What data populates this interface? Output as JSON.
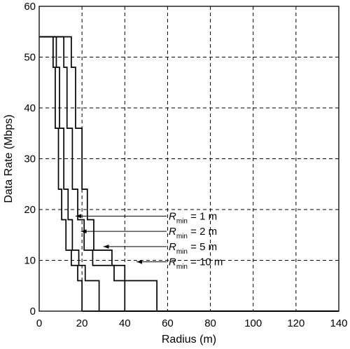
{
  "chart_data": {
    "type": "line",
    "title": "",
    "xlabel": "Radius (m)",
    "ylabel": "Data Rate (Mbps)",
    "xlim": [
      0,
      140
    ],
    "ylim": [
      0,
      60
    ],
    "xticks": [
      0,
      20,
      40,
      60,
      80,
      100,
      120,
      140
    ],
    "yticks": [
      0,
      10,
      20,
      30,
      40,
      50,
      60
    ],
    "grid": true,
    "grid_style": "dashed",
    "legend": "none",
    "series": [
      {
        "name": "Rmin = 1 m",
        "x": [
          0,
          6.5,
          6.5,
          7.5,
          7.5,
          9,
          9,
          10.5,
          10.5,
          12.5,
          12.5,
          15,
          15,
          18,
          18,
          20,
          20,
          28.5,
          28.5,
          140
        ],
        "y": [
          54,
          54,
          48,
          48,
          36,
          36,
          24,
          24,
          18,
          18,
          12,
          12,
          9,
          9,
          6,
          6,
          0,
          0,
          0,
          0
        ]
      },
      {
        "name": "Rmin = 2 m",
        "x": [
          0,
          8,
          8,
          9.5,
          9.5,
          11.5,
          11.5,
          13.5,
          13.5,
          15.5,
          15.5,
          18.5,
          18.5,
          21.5,
          21.5,
          24,
          24,
          28,
          28,
          32.5,
          32.5,
          140
        ],
        "y": [
          54,
          54,
          48,
          48,
          36,
          36,
          24,
          24,
          18,
          18,
          12,
          12,
          9,
          9,
          6,
          6,
          6,
          6,
          0,
          0,
          0,
          0
        ]
      },
      {
        "name": "Rmin = 5 m",
        "x": [
          0,
          11.5,
          11.5,
          13,
          13,
          15.5,
          15.5,
          18,
          18,
          21,
          21,
          25,
          25,
          30,
          30,
          35,
          35,
          40,
          40,
          43,
          43,
          140
        ],
        "y": [
          54,
          54,
          48,
          48,
          36,
          36,
          24,
          24,
          18,
          18,
          12,
          12,
          9,
          9,
          9,
          9,
          6,
          6,
          0,
          0,
          0,
          0
        ]
      },
      {
        "name": "Rmin = 10 m",
        "x": [
          0,
          15,
          15,
          17,
          17,
          20,
          20,
          22.5,
          22.5,
          25.5,
          25.5,
          30,
          30,
          34,
          34,
          40,
          40,
          46,
          46,
          55,
          55,
          140
        ],
        "y": [
          54,
          54,
          48,
          48,
          36,
          36,
          24,
          24,
          18,
          18,
          12,
          12,
          12,
          12,
          9,
          9,
          6,
          6,
          6,
          6,
          0,
          0
        ]
      }
    ],
    "annotations": [
      {
        "base": "R",
        "sub": "min",
        "rest": " = 1 m",
        "y": 18.7,
        "arrow_to_x": 17
      },
      {
        "base": "R",
        "sub": "min",
        "rest": " = 2 m",
        "y": 15.7,
        "arrow_to_x": 19.5
      },
      {
        "base": "R",
        "sub": "min",
        "rest": " = 5 m",
        "y": 12.7,
        "arrow_to_x": 30
      },
      {
        "base": "R",
        "sub": "min",
        "rest": " = 10 m",
        "y": 9.7,
        "arrow_to_x": 45.5
      }
    ]
  }
}
